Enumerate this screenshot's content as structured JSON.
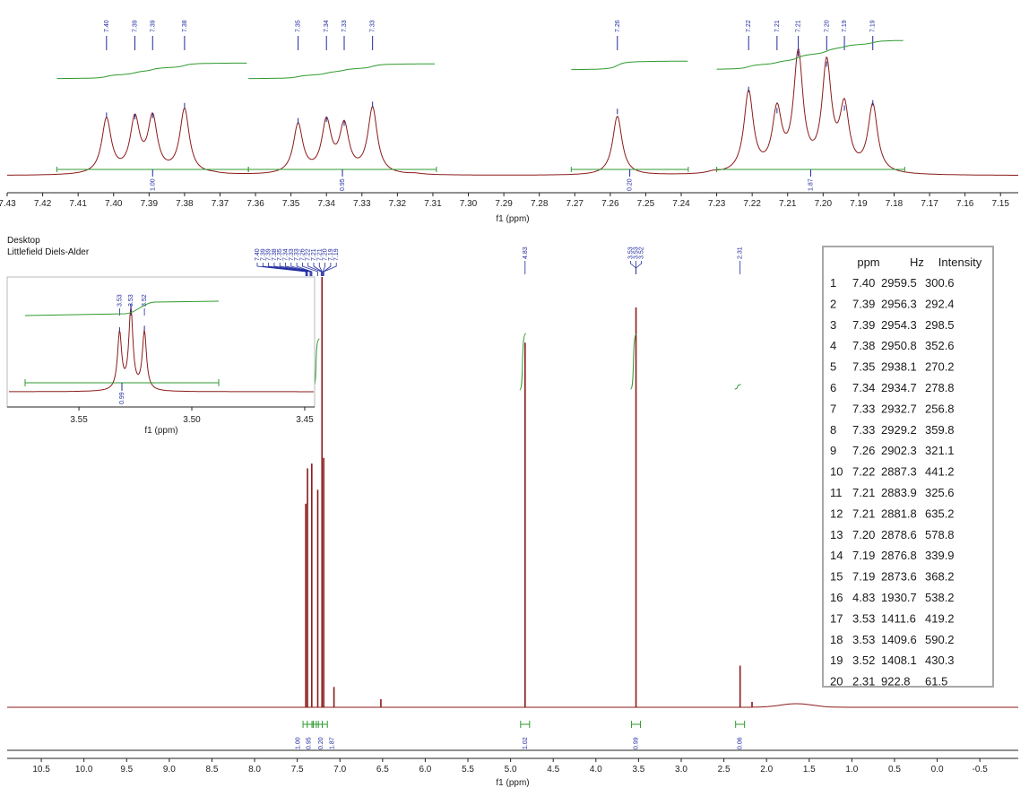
{
  "header": {
    "caption_line1": "Desktop",
    "caption_line2": "Littlefield Diels-Alder"
  },
  "colors": {
    "spectrum": "#8b1a1a",
    "integral": "#2e9a2e",
    "peak_label": "#1f2a9e",
    "axis": "#222222"
  },
  "table": {
    "headers": [
      "ppm",
      "Hz",
      "Intensity"
    ],
    "rows": [
      [
        "1",
        "7.40",
        "2959.5",
        "300.6"
      ],
      [
        "2",
        "7.39",
        "2956.3",
        "292.4"
      ],
      [
        "3",
        "7.39",
        "2954.3",
        "298.5"
      ],
      [
        "4",
        "7.38",
        "2950.8",
        "352.6"
      ],
      [
        "5",
        "7.35",
        "2938.1",
        "270.2"
      ],
      [
        "6",
        "7.34",
        "2934.7",
        "278.8"
      ],
      [
        "7",
        "7.33",
        "2932.7",
        "256.8"
      ],
      [
        "8",
        "7.33",
        "2929.2",
        "359.8"
      ],
      [
        "9",
        "7.26",
        "2902.3",
        "321.1"
      ],
      [
        "10",
        "7.22",
        "2887.3",
        "441.2"
      ],
      [
        "11",
        "7.21",
        "2883.9",
        "325.6"
      ],
      [
        "12",
        "7.21",
        "2881.8",
        "635.2"
      ],
      [
        "13",
        "7.20",
        "2878.6",
        "578.8"
      ],
      [
        "14",
        "7.19",
        "2876.8",
        "339.9"
      ],
      [
        "15",
        "7.19",
        "2873.6",
        "368.2"
      ],
      [
        "16",
        "4.83",
        "1930.7",
        "538.2"
      ],
      [
        "17",
        "3.53",
        "1411.6",
        "419.2"
      ],
      [
        "18",
        "3.53",
        "1409.6",
        "590.2"
      ],
      [
        "19",
        "3.52",
        "1408.1",
        "430.3"
      ],
      [
        "20",
        "2.31",
        "922.8",
        "61.5"
      ]
    ]
  },
  "chart_data": [
    {
      "type": "line",
      "xlabel": "f1 (ppm)",
      "xlim": [
        7.43,
        7.145
      ],
      "x_reversed": true,
      "x_ticks": [
        "7.43",
        "7.42",
        "7.41",
        "7.40",
        "7.39",
        "7.38",
        "7.37",
        "7.36",
        "7.35",
        "7.34",
        "7.33",
        "7.32",
        "7.31",
        "7.30",
        "7.29",
        "7.28",
        "7.27",
        "7.26",
        "7.25",
        "7.24",
        "7.23",
        "7.22",
        "7.21",
        "7.20",
        "7.19",
        "7.18",
        "7.17",
        "7.16",
        "7.15"
      ],
      "peaks": [
        {
          "ppm": 7.402,
          "label": "7.40",
          "height": 300.6
        },
        {
          "ppm": 7.394,
          "label": "7.39",
          "height": 292.4
        },
        {
          "ppm": 7.389,
          "label": "7.39",
          "height": 298.5
        },
        {
          "ppm": 7.38,
          "label": "7.38",
          "height": 352.6
        },
        {
          "ppm": 7.348,
          "label": "7.35",
          "height": 270.2
        },
        {
          "ppm": 7.34,
          "label": "7.34",
          "height": 278.8
        },
        {
          "ppm": 7.335,
          "label": "7.33",
          "height": 256.8
        },
        {
          "ppm": 7.327,
          "label": "7.33",
          "height": 359.8
        },
        {
          "ppm": 7.258,
          "label": "7.26",
          "height": 321.1
        },
        {
          "ppm": 7.221,
          "label": "7.22",
          "height": 441.2
        },
        {
          "ppm": 7.213,
          "label": "7.21",
          "height": 325.6
        },
        {
          "ppm": 7.207,
          "label": "7.21",
          "height": 635.2
        },
        {
          "ppm": 7.199,
          "label": "7.20",
          "height": 578.8
        },
        {
          "ppm": 7.194,
          "label": "7.19",
          "height": 339.9
        },
        {
          "ppm": 7.186,
          "label": "7.19",
          "height": 368.2
        }
      ],
      "integrals": [
        {
          "from": 7.416,
          "to": 7.362,
          "value": "1.00"
        },
        {
          "from": 7.362,
          "to": 7.309,
          "value": "0.95"
        },
        {
          "from": 7.271,
          "to": 7.238,
          "value": "0.20"
        },
        {
          "from": 7.23,
          "to": 7.177,
          "value": "1.87"
        }
      ]
    },
    {
      "type": "line",
      "xlabel": "f1 (ppm)",
      "xlim": [
        10.9,
        -0.95
      ],
      "x_reversed": true,
      "x_ticks": [
        "10.5",
        "10.0",
        "9.5",
        "9.0",
        "8.5",
        "8.0",
        "7.5",
        "7.0",
        "6.5",
        "6.0",
        "5.5",
        "5.0",
        "4.5",
        "4.0",
        "3.5",
        "3.0",
        "2.5",
        "2.0",
        "1.5",
        "1.0",
        "0.5",
        "0.0",
        "-0.5"
      ],
      "peak_groups": [
        {
          "labels": [
            "7.40",
            "7.39",
            "7.39",
            "7.38",
            "7.35",
            "7.34",
            "7.33",
            "7.33",
            "7.26",
            "7.22",
            "7.21",
            "7.21",
            "7.20",
            "7.19",
            "7.19"
          ]
        },
        {
          "labels": [
            "4.83"
          ]
        },
        {
          "labels": [
            "3.53",
            "3.53",
            "3.52"
          ]
        },
        {
          "labels": [
            "2.31"
          ]
        }
      ],
      "peaks": [
        {
          "ppm": 7.4,
          "height": 300.6
        },
        {
          "ppm": 7.38,
          "height": 352.6
        },
        {
          "ppm": 7.33,
          "height": 359.8
        },
        {
          "ppm": 7.26,
          "height": 321.1
        },
        {
          "ppm": 7.21,
          "height": 635.2
        },
        {
          "ppm": 7.19,
          "height": 368.2
        },
        {
          "ppm": 7.07,
          "height": 30
        },
        {
          "ppm": 6.52,
          "height": 12
        },
        {
          "ppm": 4.83,
          "height": 538.2
        },
        {
          "ppm": 3.53,
          "height": 590.2
        },
        {
          "ppm": 2.31,
          "height": 61.5
        },
        {
          "ppm": 2.17,
          "height": 8
        }
      ],
      "integrals": [
        {
          "center": 7.38,
          "value": "1.00"
        },
        {
          "center": 7.33,
          "value": "0.95"
        },
        {
          "center": 7.26,
          "value": "0.20"
        },
        {
          "center": 7.2,
          "value": "1.87"
        },
        {
          "center": 4.83,
          "value": "1.02"
        },
        {
          "center": 3.53,
          "value": "0.99"
        },
        {
          "center": 2.31,
          "value": "0.06"
        }
      ]
    },
    {
      "type": "line",
      "xlabel": "f1 (ppm)",
      "xlim": [
        3.581,
        3.446
      ],
      "x_reversed": true,
      "x_ticks": [
        "3.55",
        "3.50",
        "3.45"
      ],
      "peaks": [
        {
          "ppm": 3.532,
          "label": "3.53",
          "height": 419.2
        },
        {
          "ppm": 3.527,
          "label": "3.53",
          "height": 590.2
        },
        {
          "ppm": 3.521,
          "label": "3.52",
          "height": 430.3
        }
      ],
      "integrals": [
        {
          "from": 3.576,
          "to": 3.51,
          "value": "0.99"
        }
      ]
    }
  ]
}
